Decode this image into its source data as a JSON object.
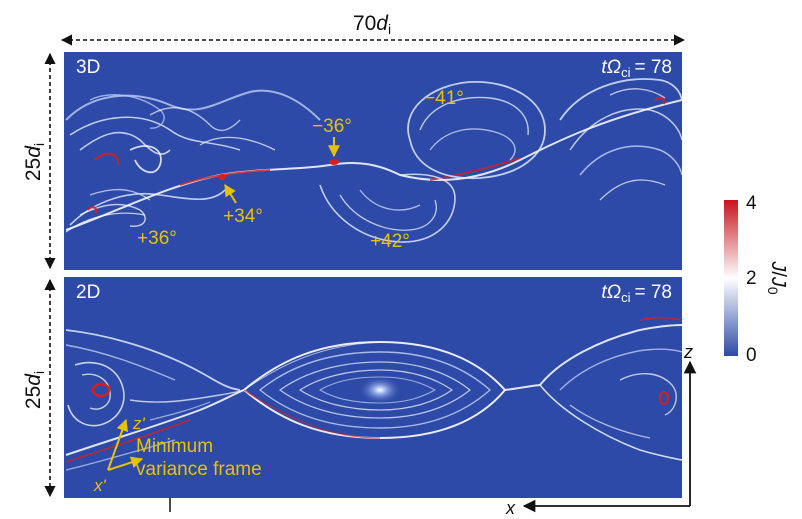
{
  "figure": {
    "width_label": {
      "value": "70",
      "var": "d",
      "sub": "i"
    },
    "height_label": {
      "value": "25",
      "var": "d",
      "sub": "i"
    },
    "colors": {
      "background": "#2d4aa8",
      "current_sheet": "#e8eefc",
      "current_peak": "#d81e1e",
      "annotation": "#e6c200",
      "divider": "#ffffff",
      "ink": "#111111"
    },
    "panels": [
      {
        "label": "3D",
        "time": {
          "var": "tΩ",
          "sub": "ci",
          "value": "= 78"
        },
        "angles": [
          "−36°",
          "−41°",
          "+34°",
          "+36°",
          "+42°"
        ]
      },
      {
        "label": "2D",
        "time": {
          "var": "tΩ",
          "sub": "ci",
          "value": "= 78"
        },
        "frame_label_line1": "Minimum",
        "frame_label_line2": "variance frame",
        "frame_axes": [
          "z'",
          "x'"
        ],
        "coord_axes": [
          "z",
          "x"
        ]
      }
    ],
    "colorbar": {
      "ticks": [
        "4",
        "2",
        "0"
      ],
      "label_var": "J",
      "label_slash": "/",
      "label_den": "J",
      "label_den_sub": "0",
      "colors": [
        "#2d4aa8",
        "#ffffff",
        "#c8141c"
      ]
    }
  }
}
